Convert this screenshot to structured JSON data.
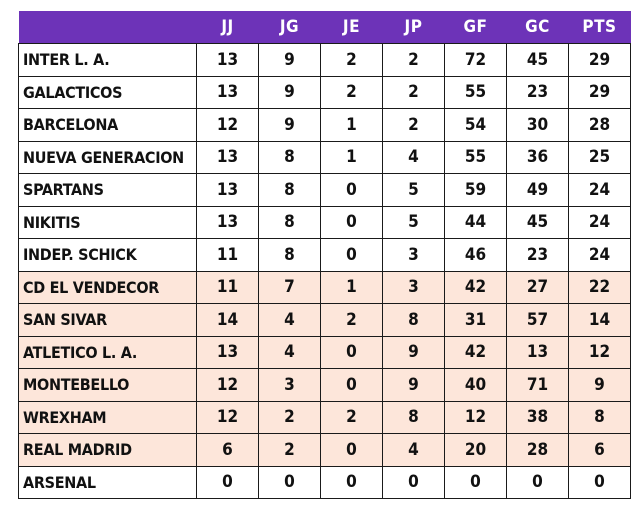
{
  "table": {
    "headers": [
      "",
      "JJ",
      "JG",
      "JE",
      "JP",
      "GF",
      "GC",
      "PTS"
    ],
    "highlight_color": "#fde6da",
    "header_color": "#6d33b8",
    "rows": [
      {
        "team": "INTER L. A.",
        "stats": [
          "13",
          "9",
          "2",
          "2",
          "72",
          "45",
          "29"
        ],
        "highlight": false
      },
      {
        "team": "GALACTICOS",
        "stats": [
          "13",
          "9",
          "2",
          "2",
          "55",
          "23",
          "29"
        ],
        "highlight": false
      },
      {
        "team": "BARCELONA",
        "stats": [
          "12",
          "9",
          "1",
          "2",
          "54",
          "30",
          "28"
        ],
        "highlight": false
      },
      {
        "team": "NUEVA GENERACION",
        "stats": [
          "13",
          "8",
          "1",
          "4",
          "55",
          "36",
          "25"
        ],
        "highlight": false
      },
      {
        "team": "SPARTANS",
        "stats": [
          "13",
          "8",
          "0",
          "5",
          "59",
          "49",
          "24"
        ],
        "highlight": false
      },
      {
        "team": "NIKITIS",
        "stats": [
          "13",
          "8",
          "0",
          "5",
          "44",
          "45",
          "24"
        ],
        "highlight": false
      },
      {
        "team": "INDEP. SCHICK",
        "stats": [
          "11",
          "8",
          "0",
          "3",
          "46",
          "23",
          "24"
        ],
        "highlight": false
      },
      {
        "team": "CD EL VENDECOR",
        "stats": [
          "11",
          "7",
          "1",
          "3",
          "42",
          "27",
          "22"
        ],
        "highlight": true
      },
      {
        "team": "SAN SIVAR",
        "stats": [
          "14",
          "4",
          "2",
          "8",
          "31",
          "57",
          "14"
        ],
        "highlight": true
      },
      {
        "team": "ATLETICO L. A.",
        "stats": [
          "13",
          "4",
          "0",
          "9",
          "42",
          "13",
          "12"
        ],
        "highlight": true
      },
      {
        "team": "MONTEBELLO",
        "stats": [
          "12",
          "3",
          "0",
          "9",
          "40",
          "71",
          "9"
        ],
        "highlight": true
      },
      {
        "team": "WREXHAM",
        "stats": [
          "12",
          "2",
          "2",
          "8",
          "12",
          "38",
          "8"
        ],
        "highlight": true
      },
      {
        "team": "REAL MADRID",
        "stats": [
          "6",
          "2",
          "0",
          "4",
          "20",
          "28",
          "6"
        ],
        "highlight": true
      },
      {
        "team": "ARSENAL",
        "stats": [
          "0",
          "0",
          "0",
          "0",
          "0",
          "0",
          "0"
        ],
        "highlight": false
      }
    ]
  }
}
